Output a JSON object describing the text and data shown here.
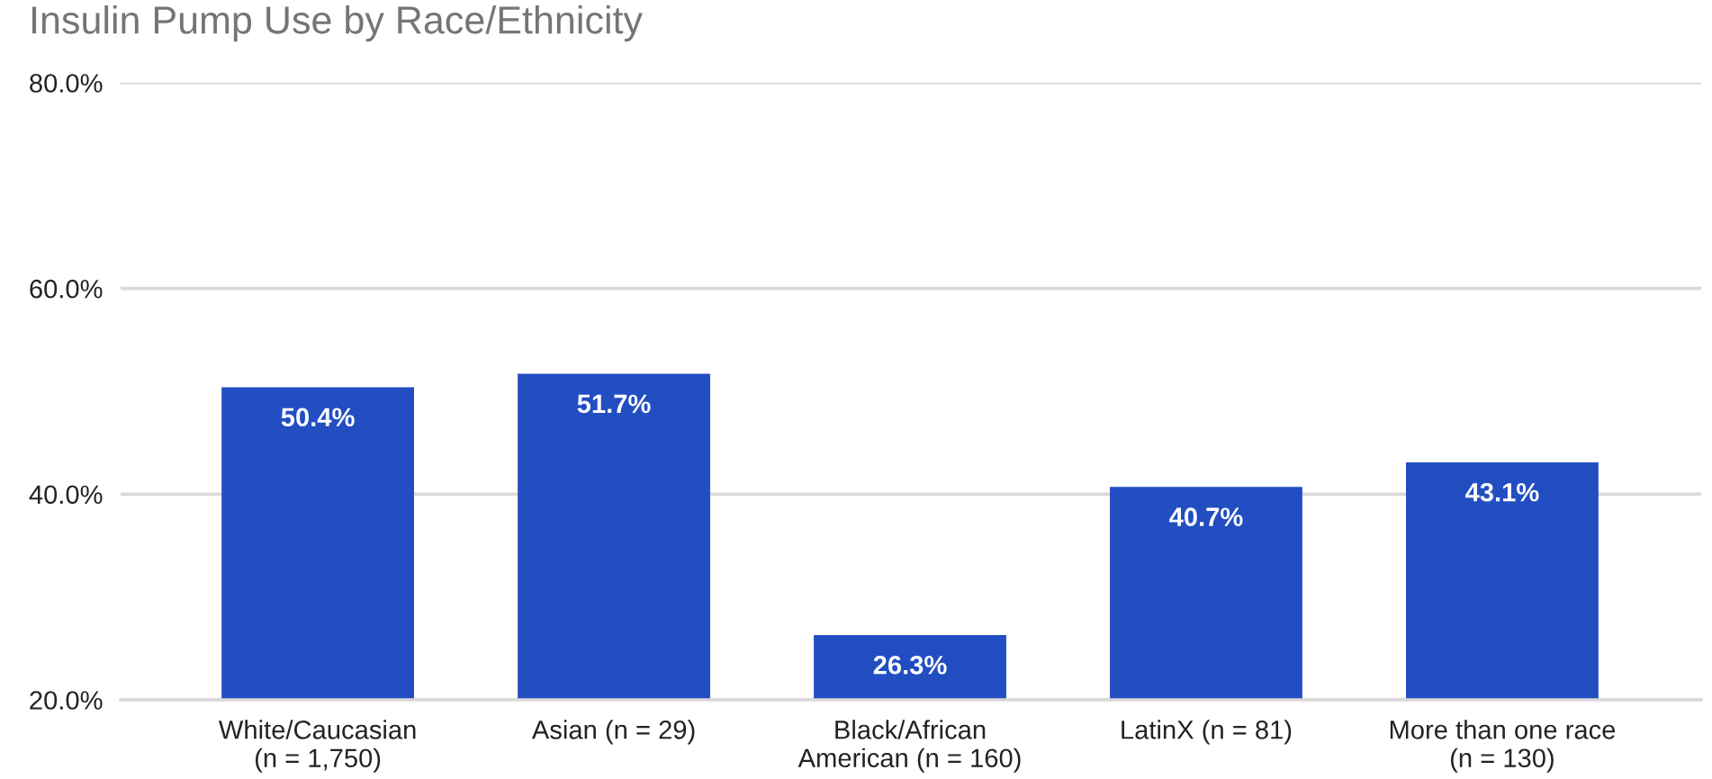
{
  "chart_data": {
    "type": "bar",
    "title": "Insulin Pump Use by Race/Ethnicity",
    "categories": [
      "White/Caucasian\n(n = 1,750)",
      "Asian (n = 29)",
      "Black/African\nAmerican (n = 160)",
      "LatinX (n = 81)",
      "More than one race\n(n = 130)"
    ],
    "values": [
      50.4,
      51.7,
      26.3,
      40.7,
      43.1
    ],
    "value_labels": [
      "50.4%",
      "51.7%",
      "26.3%",
      "40.7%",
      "43.1%"
    ],
    "color": "#224ec2",
    "ylim": [
      20,
      80
    ],
    "yticks": [
      {
        "value": 20,
        "label": "20.0%"
      },
      {
        "value": 40,
        "label": "40.0%"
      },
      {
        "value": 60,
        "label": "60.0%"
      },
      {
        "value": 80,
        "label": "80.0%"
      }
    ],
    "grid": "y"
  }
}
